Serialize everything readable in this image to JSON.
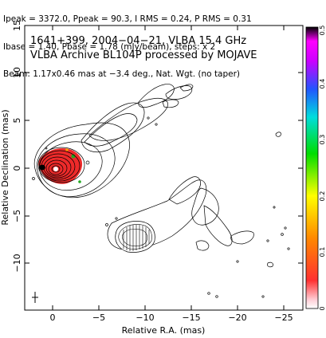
{
  "header": {
    "line1": "Ipeak = 3372.0, Ppeak = 90.3, I RMS = 0.24, P RMS = 0.31",
    "line2": "Ibase = 1.40, Pbase = 1.78 (mJy/beam), steps: x 2",
    "line3": "Beam: 1.17x0.46 mas at −3.4 deg., Nat. Wgt. (no taper)"
  },
  "chart_data": {
    "type": "heatmap",
    "title_line1": "1641+399, 2004−04−21, VLBA 15.4 GHz",
    "title_line2": "VLBA Archive BL104P processed by MOJAVE",
    "xlabel": "Relative R.A. (mas)",
    "ylabel": "Relative Declination (mas)",
    "xlim": [
      3,
      -27
    ],
    "ylim": [
      -14.5,
      15
    ],
    "xticks": [
      0,
      -5,
      -10,
      -15,
      -20,
      -25
    ],
    "xtick_labels": [
      "0",
      "−5",
      "−10",
      "−15",
      "−20",
      "−25"
    ],
    "yticks": [
      15,
      10,
      5,
      0,
      -5,
      -10
    ],
    "ytick_labels": [
      "15",
      "10",
      "5",
      "0",
      "−5",
      "−10"
    ],
    "colorbar": {
      "min": 0,
      "max": 0.5,
      "ticks": [
        0,
        0.1,
        0.2,
        0.3,
        0.4,
        0.5
      ],
      "tick_labels": [
        "0",
        "0.1",
        "0.2",
        "0.3",
        "0.4",
        "0.5"
      ]
    },
    "components": [
      {
        "name": "core",
        "ra": 0.5,
        "dec": 0.2
      },
      {
        "name": "jet_knot",
        "ra": -7.0,
        "dec": -6.7
      }
    ],
    "colors": {
      "core_fill": "#ee2a2a",
      "contour": "#000000"
    }
  }
}
